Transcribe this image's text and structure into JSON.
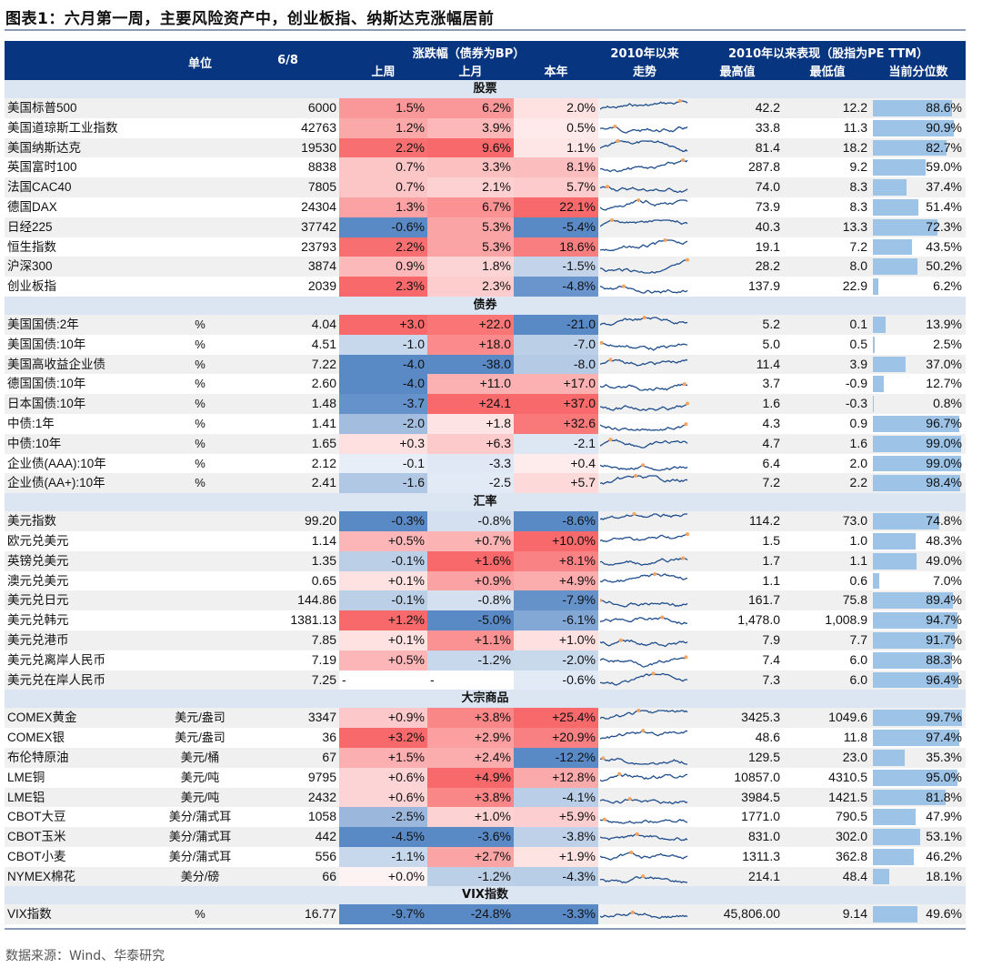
{
  "title": "图表1：六月第一周，主要风险资产中，创业板指、纳斯达克涨幅居前",
  "source": "数据来源：Wind、华泰研究",
  "colors": {
    "header_bg": "#08357f",
    "section_bg": "#dce6f2",
    "red": "#f8696b",
    "blue": "#5a8ac6",
    "bar": "#9dc3e6",
    "spark": "#1f4e8c",
    "spark_dot": "#f4a460"
  },
  "header": {
    "unit": "单位",
    "date": "6/8",
    "change_group": "涨跌幅（债券为BP）",
    "week": "上周",
    "month": "上月",
    "ytd": "本年",
    "trend_top": "2010年以来",
    "trend_bottom": "走势",
    "perf_group": "2010年以来表现（股指为PE TTM）",
    "high": "最高值",
    "low": "最低值",
    "percentile": "当前分位数"
  },
  "sections": [
    {
      "title": "股票",
      "rows": [
        [
          "美国标普500",
          "",
          "6000",
          "1.5%",
          "6.2%",
          "2.0%",
          "42.2",
          "12.2",
          "88.6%"
        ],
        [
          "美国道琼斯工业指数",
          "",
          "42763",
          "1.2%",
          "3.9%",
          "0.5%",
          "33.8",
          "11.3",
          "90.9%"
        ],
        [
          "美国纳斯达克",
          "",
          "19530",
          "2.2%",
          "9.6%",
          "1.1%",
          "81.4",
          "18.2",
          "82.7%"
        ],
        [
          "英国富时100",
          "",
          "8838",
          "0.7%",
          "3.3%",
          "8.1%",
          "287.8",
          "9.2",
          "59.0%"
        ],
        [
          "法国CAC40",
          "",
          "7805",
          "0.7%",
          "2.1%",
          "5.7%",
          "74.0",
          "8.3",
          "37.4%"
        ],
        [
          "德国DAX",
          "",
          "24304",
          "1.3%",
          "6.7%",
          "22.1%",
          "73.9",
          "8.3",
          "51.4%"
        ],
        [
          "日经225",
          "",
          "37742",
          "-0.6%",
          "5.3%",
          "-5.4%",
          "40.3",
          "13.3",
          "72.3%"
        ],
        [
          "恒生指数",
          "",
          "23793",
          "2.2%",
          "5.3%",
          "18.6%",
          "19.1",
          "7.2",
          "43.5%"
        ],
        [
          "沪深300",
          "",
          "3874",
          "0.9%",
          "1.8%",
          "-1.5%",
          "28.2",
          "8.0",
          "50.2%"
        ],
        [
          "创业板指",
          "",
          "2039",
          "2.3%",
          "2.3%",
          "-4.8%",
          "137.9",
          "22.9",
          "6.2%"
        ]
      ]
    },
    {
      "title": "债券",
      "rows": [
        [
          "美国国债:2年",
          "%",
          "4.04",
          "+3.0",
          "+22.0",
          "-21.0",
          "5.2",
          "0.1",
          "13.9%"
        ],
        [
          "美国国债:10年",
          "%",
          "4.51",
          "-1.0",
          "+18.0",
          "-7.0",
          "5.0",
          "0.5",
          "2.5%"
        ],
        [
          "美国高收益企业债",
          "%",
          "7.22",
          "-4.0",
          "-38.0",
          "-8.0",
          "11.4",
          "3.9",
          "37.0%"
        ],
        [
          "德国国债:10年",
          "%",
          "2.60",
          "-4.0",
          "+11.0",
          "+17.0",
          "3.7",
          "-0.9",
          "12.7%"
        ],
        [
          "日本国债:10年",
          "%",
          "1.48",
          "-3.7",
          "+24.1",
          "+37.0",
          "1.6",
          "-0.3",
          "0.8%"
        ],
        [
          "中债:1年",
          "%",
          "1.41",
          "-2.0",
          "+1.8",
          "+32.6",
          "4.3",
          "0.9",
          "96.7%"
        ],
        [
          "中债:10年",
          "%",
          "1.65",
          "+0.3",
          "+6.3",
          "-2.1",
          "4.7",
          "1.6",
          "99.0%"
        ],
        [
          "企业债(AAA):10年",
          "%",
          "2.12",
          "-0.1",
          "-3.3",
          "+0.4",
          "6.4",
          "2.0",
          "99.0%"
        ],
        [
          "企业债(AA+):10年",
          "%",
          "2.41",
          "-1.6",
          "-2.5",
          "+5.7",
          "7.2",
          "2.2",
          "98.4%"
        ]
      ]
    },
    {
      "title": "汇率",
      "rows": [
        [
          "美元指数",
          "",
          "99.20",
          "-0.3%",
          "-0.8%",
          "-8.6%",
          "114.2",
          "73.0",
          "74.8%"
        ],
        [
          "欧元兑美元",
          "",
          "1.14",
          "+0.5%",
          "+0.7%",
          "+10.0%",
          "1.5",
          "1.0",
          "48.3%"
        ],
        [
          "英镑兑美元",
          "",
          "1.35",
          "-0.1%",
          "+1.6%",
          "+8.1%",
          "1.7",
          "1.1",
          "49.0%"
        ],
        [
          "澳元兑美元",
          "",
          "0.65",
          "+0.1%",
          "+0.9%",
          "+4.9%",
          "1.1",
          "0.6",
          "7.0%"
        ],
        [
          "美元兑日元",
          "",
          "144.86",
          "-0.1%",
          "-0.8%",
          "-7.9%",
          "161.7",
          "75.8",
          "89.4%"
        ],
        [
          "美元兑韩元",
          "",
          "1381.13",
          "+1.2%",
          "-5.0%",
          "-6.1%",
          "1,478.0",
          "1,008.9",
          "94.7%"
        ],
        [
          "美元兑港币",
          "",
          "7.85",
          "+0.1%",
          "+1.1%",
          "+1.0%",
          "7.9",
          "7.7",
          "91.7%"
        ],
        [
          "美元兑离岸人民币",
          "",
          "7.19",
          "+0.5%",
          "-1.2%",
          "-2.0%",
          "7.4",
          "6.0",
          "88.3%"
        ],
        [
          "美元兑在岸人民币",
          "",
          "7.25",
          "-",
          "-",
          "-0.6%",
          "7.3",
          "6.0",
          "96.4%"
        ]
      ]
    },
    {
      "title": "大宗商品",
      "rows": [
        [
          "COMEX黄金",
          "美元/盎司",
          "3347",
          "+0.9%",
          "+3.8%",
          "+25.4%",
          "3425.3",
          "1049.6",
          "99.7%"
        ],
        [
          "COMEX银",
          "美元/盎司",
          "36",
          "+3.2%",
          "+2.9%",
          "+20.9%",
          "48.6",
          "11.8",
          "97.4%"
        ],
        [
          "布伦特原油",
          "美元/桶",
          "67",
          "+1.5%",
          "+2.4%",
          "-12.2%",
          "129.5",
          "23.0",
          "35.3%"
        ],
        [
          "LME铜",
          "美元/吨",
          "9795",
          "+0.6%",
          "+4.9%",
          "+12.8%",
          "10857.0",
          "4310.5",
          "95.0%"
        ],
        [
          "LME铝",
          "美元/吨",
          "2432",
          "+0.6%",
          "+3.8%",
          "-4.1%",
          "3984.5",
          "1421.5",
          "81.8%"
        ],
        [
          "CBOT大豆",
          "美分/蒲式耳",
          "1058",
          "-2.5%",
          "+1.0%",
          "+5.9%",
          "1771.0",
          "790.5",
          "47.9%"
        ],
        [
          "CBOT玉米",
          "美分/蒲式耳",
          "442",
          "-4.5%",
          "-3.6%",
          "-3.8%",
          "831.0",
          "302.0",
          "53.1%"
        ],
        [
          "CBOT小麦",
          "美分/蒲式耳",
          "556",
          "-1.1%",
          "+2.7%",
          "+1.9%",
          "1311.3",
          "362.8",
          "46.2%"
        ],
        [
          "NYMEX棉花",
          "美分/磅",
          "66",
          "+0.0%",
          "-1.2%",
          "-4.3%",
          "214.1",
          "48.4",
          "18.1%"
        ]
      ]
    },
    {
      "title": "VIX指数",
      "rows": [
        [
          "VIX指数",
          "%",
          "16.77",
          "-9.7%",
          "-24.8%",
          "-3.3%",
          "45,806.00",
          "9.14",
          "49.6%"
        ]
      ]
    }
  ]
}
